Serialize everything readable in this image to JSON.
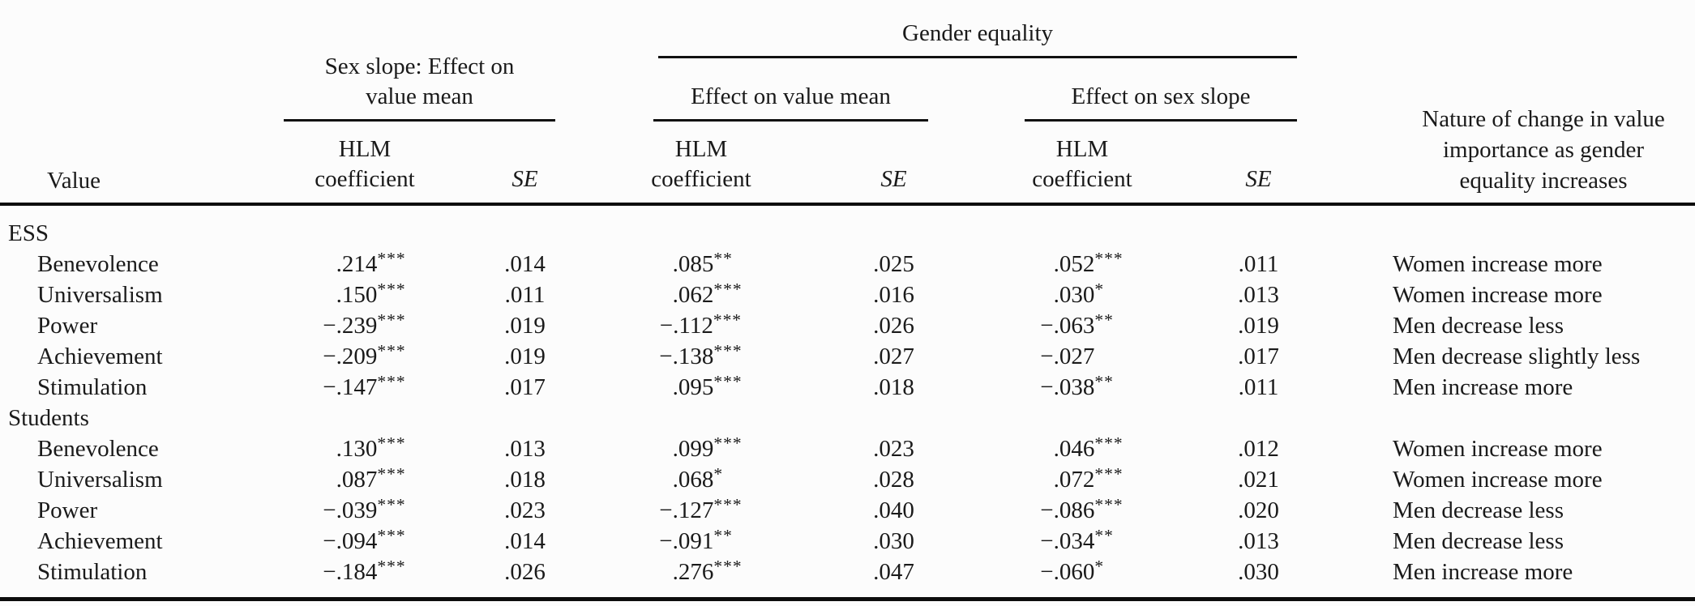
{
  "colors": {
    "background": "#fcfcfc",
    "text": "#1a1a1a",
    "rule": "#0d0d0d"
  },
  "header": {
    "value": "Value",
    "sex_slope_group": "Sex slope: Effect on value mean",
    "gender_equality_group": "Gender equality",
    "effect_on_value_mean_group": "Effect on value mean",
    "effect_on_sex_slope_group": "Effect on sex slope",
    "hlm_coefficient": "HLM coefficient",
    "se": "SE",
    "nature_of_change": "Nature of change in value importance as gender equality increases"
  },
  "sections": [
    {
      "label": "ESS",
      "rows": [
        {
          "value": "Benevolence",
          "sex_slope_coef": ".214",
          "sex_slope_stars": "***",
          "sex_slope_se": ".014",
          "ge_mean_coef": ".085",
          "ge_mean_stars": "**",
          "ge_mean_se": ".025",
          "ge_slope_coef": ".052",
          "ge_slope_stars": "***",
          "ge_slope_se": ".011",
          "nature": "Women increase more"
        },
        {
          "value": "Universalism",
          "sex_slope_coef": ".150",
          "sex_slope_stars": "***",
          "sex_slope_se": ".011",
          "ge_mean_coef": ".062",
          "ge_mean_stars": "***",
          "ge_mean_se": ".016",
          "ge_slope_coef": ".030",
          "ge_slope_stars": "*",
          "ge_slope_se": ".013",
          "nature": "Women increase more"
        },
        {
          "value": "Power",
          "sex_slope_coef": "−.239",
          "sex_slope_stars": "***",
          "sex_slope_se": ".019",
          "ge_mean_coef": "−.112",
          "ge_mean_stars": "***",
          "ge_mean_se": ".026",
          "ge_slope_coef": "−.063",
          "ge_slope_stars": "**",
          "ge_slope_se": ".019",
          "nature": "Men decrease less"
        },
        {
          "value": "Achievement",
          "sex_slope_coef": "−.209",
          "sex_slope_stars": "***",
          "sex_slope_se": ".019",
          "ge_mean_coef": "−.138",
          "ge_mean_stars": "***",
          "ge_mean_se": ".027",
          "ge_slope_coef": "−.027",
          "ge_slope_stars": "",
          "ge_slope_se": ".017",
          "nature": "Men decrease slightly less"
        },
        {
          "value": "Stimulation",
          "sex_slope_coef": "−.147",
          "sex_slope_stars": "***",
          "sex_slope_se": ".017",
          "ge_mean_coef": ".095",
          "ge_mean_stars": "***",
          "ge_mean_se": ".018",
          "ge_slope_coef": "−.038",
          "ge_slope_stars": "**",
          "ge_slope_se": ".011",
          "nature": "Men increase more"
        }
      ]
    },
    {
      "label": "Students",
      "rows": [
        {
          "value": "Benevolence",
          "sex_slope_coef": ".130",
          "sex_slope_stars": "***",
          "sex_slope_se": ".013",
          "ge_mean_coef": ".099",
          "ge_mean_stars": "***",
          "ge_mean_se": ".023",
          "ge_slope_coef": ".046",
          "ge_slope_stars": "***",
          "ge_slope_se": ".012",
          "nature": "Women increase more"
        },
        {
          "value": "Universalism",
          "sex_slope_coef": ".087",
          "sex_slope_stars": "***",
          "sex_slope_se": ".018",
          "ge_mean_coef": ".068",
          "ge_mean_stars": "*",
          "ge_mean_se": ".028",
          "ge_slope_coef": ".072",
          "ge_slope_stars": "***",
          "ge_slope_se": ".021",
          "nature": "Women increase more"
        },
        {
          "value": "Power",
          "sex_slope_coef": "−.039",
          "sex_slope_stars": "***",
          "sex_slope_se": ".023",
          "ge_mean_coef": "−.127",
          "ge_mean_stars": "***",
          "ge_mean_se": ".040",
          "ge_slope_coef": "−.086",
          "ge_slope_stars": "***",
          "ge_slope_se": ".020",
          "nature": "Men decrease less"
        },
        {
          "value": "Achievement",
          "sex_slope_coef": "−.094",
          "sex_slope_stars": "***",
          "sex_slope_se": ".014",
          "ge_mean_coef": "−.091",
          "ge_mean_stars": "**",
          "ge_mean_se": ".030",
          "ge_slope_coef": "−.034",
          "ge_slope_stars": "**",
          "ge_slope_se": ".013",
          "nature": "Men decrease less"
        },
        {
          "value": "Stimulation",
          "sex_slope_coef": "−.184",
          "sex_slope_stars": "***",
          "sex_slope_se": ".026",
          "ge_mean_coef": ".276",
          "ge_mean_stars": "***",
          "ge_mean_se": ".047",
          "ge_slope_coef": "−.060",
          "ge_slope_stars": "*",
          "ge_slope_se": ".030",
          "nature": "Men increase more"
        }
      ]
    }
  ]
}
